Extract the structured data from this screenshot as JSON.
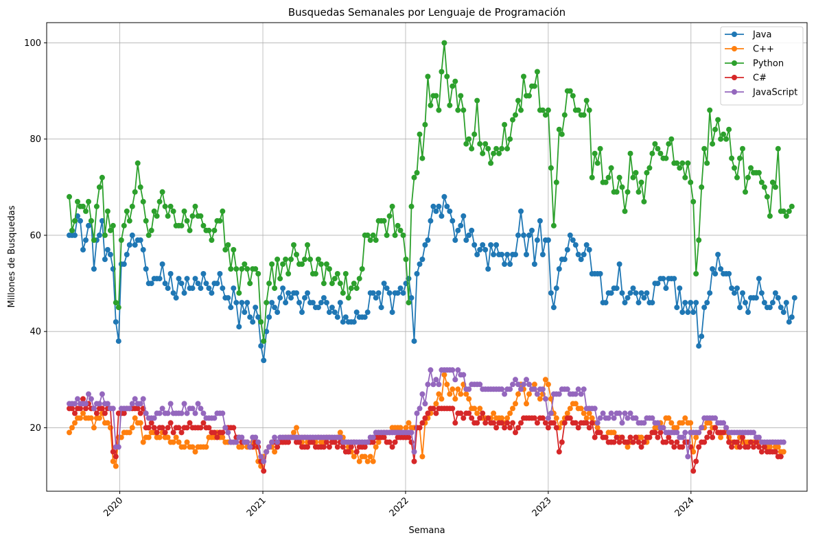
{
  "chart_data": {
    "type": "line",
    "title": "Busquedas Semanales por Lenguaje de Programación",
    "xlabel": "Semana",
    "ylabel": "Millones de Busquedas",
    "x_start": "2019-08-25",
    "x_step_days": 7,
    "xlim": [
      "2019-06-28",
      "2024-10-24"
    ],
    "ylim": [
      6.8,
      104.2
    ],
    "x_ticks": [
      "2020",
      "2021",
      "2022",
      "2023",
      "2024"
    ],
    "x_tick_dates": [
      "2020-01-01",
      "2021-01-01",
      "2022-01-01",
      "2023-01-01",
      "2024-01-01"
    ],
    "y_ticks": [
      20,
      40,
      60,
      80,
      100
    ],
    "grid": true,
    "legend_position": "top-right",
    "series": [
      {
        "name": "Java",
        "color": "#1f77b4",
        "values": [
          60,
          60,
          60,
          64,
          63,
          57,
          59,
          62,
          63,
          53,
          59,
          60,
          63,
          55,
          57,
          56,
          53,
          42,
          38,
          54,
          54,
          56,
          58,
          60,
          58,
          59,
          59,
          57,
          53,
          50,
          50,
          51,
          51,
          51,
          54,
          50,
          49,
          52,
          48,
          47,
          51,
          50,
          48,
          51,
          49,
          49,
          51,
          50,
          49,
          52,
          50,
          49,
          48,
          50,
          50,
          52,
          49,
          47,
          47,
          45,
          49,
          46,
          41,
          46,
          44,
          46,
          43,
          42,
          45,
          43,
          37,
          34,
          40,
          43,
          46,
          45,
          44,
          47,
          49,
          46,
          48,
          47,
          48,
          48,
          46,
          44,
          47,
          48,
          46,
          46,
          45,
          45,
          46,
          47,
          46,
          44,
          45,
          44,
          43,
          46,
          42,
          43,
          42,
          42,
          42,
          44,
          43,
          43,
          43,
          44,
          48,
          48,
          47,
          48,
          45,
          50,
          49,
          48,
          44,
          48,
          48,
          49,
          48,
          50,
          51,
          47,
          38,
          52,
          54,
          55,
          58,
          59,
          63,
          66,
          65,
          66,
          64,
          68,
          66,
          65,
          63,
          59,
          61,
          62,
          64,
          59,
          60,
          61,
          58,
          56,
          57,
          58,
          57,
          53,
          58,
          56,
          58,
          56,
          56,
          54,
          56,
          54,
          56,
          56,
          60,
          65,
          60,
          56,
          60,
          61,
          54,
          59,
          63,
          56,
          59,
          59,
          48,
          45,
          49,
          53,
          55,
          55,
          57,
          60,
          59,
          58,
          56,
          55,
          56,
          58,
          57,
          52,
          52,
          52,
          52,
          46,
          46,
          48,
          48,
          49,
          49,
          54,
          48,
          46,
          47,
          48,
          49,
          48,
          46,
          48,
          47,
          48,
          46,
          46,
          50,
          50,
          51,
          51,
          49,
          51,
          51,
          51,
          45,
          49,
          44,
          46,
          44,
          46,
          44,
          46,
          37,
          39,
          45,
          46,
          48,
          53,
          52,
          56,
          53,
          52,
          52,
          52,
          49,
          48,
          49,
          45,
          48,
          46,
          44,
          47,
          47,
          47,
          51,
          48,
          46,
          45,
          45,
          46,
          48,
          47,
          45,
          44,
          46,
          42,
          43,
          47
        ]
      },
      {
        "name": "C++",
        "color": "#ff7f0e",
        "values": [
          19,
          20,
          21,
          22,
          22,
          23,
          22,
          22,
          22,
          20,
          22,
          22,
          23,
          21,
          21,
          20,
          13,
          12,
          18,
          18,
          19,
          19,
          19,
          20,
          22,
          21,
          21,
          17,
          18,
          18,
          19,
          19,
          18,
          18,
          19,
          18,
          18,
          17,
          17,
          18,
          17,
          16,
          16,
          17,
          16,
          16,
          15,
          16,
          16,
          16,
          16,
          18,
          18,
          18,
          19,
          18,
          18,
          17,
          17,
          17,
          17,
          17,
          16,
          16,
          17,
          16,
          16,
          17,
          16,
          13,
          12,
          14,
          15,
          16,
          16,
          15,
          17,
          17,
          17,
          18,
          18,
          18,
          19,
          20,
          18,
          17,
          18,
          17,
          17,
          17,
          17,
          18,
          17,
          17,
          18,
          18,
          17,
          17,
          18,
          19,
          18,
          17,
          16,
          15,
          14,
          15,
          13,
          14,
          14,
          13,
          14,
          13,
          16,
          17,
          18,
          19,
          19,
          19,
          20,
          20,
          20,
          20,
          19,
          20,
          21,
          20,
          20,
          20,
          20,
          14,
          21,
          22,
          23,
          24,
          25,
          27,
          26,
          31,
          29,
          27,
          28,
          26,
          28,
          27,
          29,
          27,
          26,
          24,
          24,
          23,
          24,
          22,
          22,
          22,
          22,
          23,
          22,
          22,
          22,
          21,
          22,
          23,
          24,
          25,
          27,
          29,
          28,
          25,
          27,
          28,
          29,
          27,
          26,
          27,
          30,
          29,
          26,
          23,
          22,
          20,
          21,
          22,
          23,
          24,
          25,
          25,
          24,
          24,
          23,
          22,
          23,
          22,
          21,
          20,
          19,
          18,
          18,
          19,
          19,
          19,
          18,
          18,
          18,
          17,
          16,
          17,
          17,
          18,
          18,
          18,
          17,
          17,
          18,
          19,
          20,
          20,
          21,
          20,
          22,
          22,
          21,
          20,
          20,
          21,
          21,
          22,
          21,
          21,
          15,
          18,
          19,
          20,
          20,
          21,
          21,
          20,
          20,
          19,
          18,
          19,
          19,
          18,
          17,
          17,
          16,
          18,
          17,
          17,
          17,
          17,
          17,
          17,
          17,
          17,
          16,
          16,
          16,
          17,
          16,
          16,
          15,
          15
        ]
      },
      {
        "name": "Python",
        "color": "#2ca02c",
        "values": [
          68,
          61,
          63,
          67,
          66,
          66,
          65,
          67,
          63,
          59,
          66,
          70,
          72,
          60,
          65,
          61,
          62,
          46,
          45,
          59,
          62,
          65,
          63,
          66,
          69,
          75,
          70,
          67,
          63,
          60,
          61,
          65,
          64,
          67,
          69,
          66,
          64,
          66,
          65,
          62,
          62,
          62,
          65,
          63,
          61,
          64,
          66,
          64,
          64,
          62,
          61,
          61,
          59,
          61,
          63,
          63,
          65,
          57,
          58,
          53,
          57,
          53,
          48,
          53,
          54,
          53,
          50,
          53,
          53,
          52,
          42,
          38,
          46,
          50,
          54,
          49,
          55,
          51,
          54,
          55,
          52,
          55,
          58,
          56,
          54,
          54,
          55,
          58,
          55,
          52,
          52,
          55,
          54,
          50,
          54,
          53,
          50,
          51,
          52,
          50,
          48,
          52,
          47,
          49,
          50,
          49,
          51,
          53,
          60,
          60,
          59,
          60,
          59,
          63,
          63,
          63,
          60,
          64,
          66,
          60,
          62,
          61,
          60,
          55,
          46,
          66,
          72,
          73,
          81,
          76,
          83,
          93,
          87,
          89,
          89,
          86,
          94,
          100,
          93,
          87,
          91,
          92,
          86,
          89,
          86,
          79,
          80,
          78,
          81,
          88,
          79,
          77,
          79,
          78,
          75,
          77,
          78,
          77,
          78,
          83,
          78,
          80,
          84,
          85,
          88,
          86,
          93,
          89,
          89,
          91,
          91,
          94,
          86,
          86,
          85,
          86,
          74,
          62,
          71,
          82,
          81,
          85,
          90,
          90,
          89,
          86,
          86,
          85,
          85,
          88,
          86,
          72,
          77,
          75,
          78,
          71,
          71,
          72,
          74,
          69,
          69,
          72,
          70,
          65,
          69,
          77,
          72,
          73,
          69,
          71,
          67,
          73,
          74,
          77,
          79,
          78,
          77,
          76,
          76,
          79,
          80,
          75,
          75,
          74,
          75,
          72,
          75,
          71,
          67,
          52,
          59,
          70,
          78,
          75,
          86,
          79,
          82,
          84,
          80,
          81,
          80,
          82,
          76,
          74,
          72,
          76,
          78,
          69,
          72,
          74,
          73,
          73,
          73,
          71,
          70,
          68,
          64,
          71,
          70,
          78,
          65,
          65,
          64,
          65,
          66
        ]
      },
      {
        "name": "C#",
        "color": "#d62728",
        "values": [
          24,
          24,
          23,
          24,
          24,
          26,
          24,
          25,
          24,
          24,
          23,
          24,
          24,
          23,
          24,
          24,
          15,
          14,
          23,
          23,
          23,
          24,
          24,
          24,
          24,
          24,
          23,
          24,
          20,
          20,
          21,
          20,
          19,
          20,
          20,
          19,
          20,
          21,
          19,
          20,
          20,
          19,
          20,
          20,
          21,
          20,
          20,
          20,
          20,
          21,
          20,
          20,
          19,
          19,
          18,
          19,
          19,
          20,
          20,
          20,
          20,
          18,
          18,
          17,
          17,
          17,
          16,
          16,
          17,
          16,
          13,
          11,
          15,
          16,
          17,
          17,
          16,
          17,
          17,
          17,
          17,
          18,
          18,
          17,
          17,
          16,
          16,
          16,
          17,
          17,
          16,
          16,
          16,
          16,
          17,
          16,
          17,
          17,
          16,
          17,
          16,
          15,
          15,
          16,
          17,
          15,
          16,
          16,
          16,
          17,
          17,
          17,
          18,
          18,
          18,
          18,
          17,
          17,
          16,
          17,
          18,
          18,
          18,
          18,
          18,
          17,
          13,
          20,
          20,
          21,
          22,
          23,
          24,
          24,
          23,
          24,
          24,
          24,
          24,
          24,
          24,
          21,
          23,
          23,
          22,
          23,
          23,
          22,
          21,
          21,
          22,
          23,
          21,
          22,
          21,
          21,
          20,
          21,
          21,
          20,
          21,
          20,
          21,
          19,
          20,
          21,
          22,
          22,
          22,
          22,
          22,
          21,
          22,
          22,
          21,
          20,
          21,
          21,
          20,
          15,
          17,
          21,
          22,
          22,
          21,
          21,
          20,
          21,
          21,
          21,
          20,
          21,
          18,
          19,
          19,
          18,
          18,
          17,
          17,
          17,
          18,
          17,
          18,
          17,
          17,
          18,
          17,
          18,
          17,
          16,
          17,
          18,
          18,
          19,
          19,
          18,
          19,
          17,
          17,
          18,
          17,
          16,
          17,
          16,
          16,
          17,
          17,
          16,
          11,
          13,
          16,
          17,
          17,
          18,
          19,
          18,
          20,
          19,
          19,
          19,
          20,
          17,
          16,
          17,
          17,
          16,
          18,
          16,
          16,
          17,
          16,
          17,
          16,
          15,
          16,
          15,
          15,
          15,
          15,
          14,
          14
        ]
      },
      {
        "name": "JavaScript",
        "color": "#9467bd",
        "values": [
          25,
          25,
          25,
          26,
          25,
          25,
          25,
          27,
          26,
          24,
          25,
          25,
          27,
          25,
          25,
          24,
          24,
          16,
          16,
          24,
          24,
          24,
          24,
          25,
          26,
          25,
          25,
          26,
          23,
          22,
          22,
          22,
          23,
          23,
          24,
          23,
          23,
          25,
          23,
          23,
          23,
          23,
          25,
          23,
          24,
          24,
          23,
          25,
          24,
          23,
          22,
          22,
          22,
          22,
          23,
          23,
          23,
          20,
          19,
          17,
          17,
          17,
          18,
          18,
          17,
          17,
          16,
          18,
          18,
          17,
          14,
          13,
          15,
          16,
          17,
          18,
          17,
          18,
          18,
          18,
          18,
          18,
          18,
          18,
          18,
          18,
          18,
          18,
          18,
          18,
          18,
          18,
          18,
          18,
          18,
          18,
          18,
          18,
          18,
          18,
          17,
          17,
          17,
          17,
          17,
          17,
          17,
          17,
          17,
          17,
          18,
          18,
          19,
          19,
          19,
          19,
          19,
          19,
          19,
          19,
          19,
          19,
          19,
          19,
          19,
          19,
          15,
          23,
          24,
          27,
          25,
          29,
          32,
          29,
          30,
          29,
          32,
          32,
          32,
          32,
          32,
          30,
          32,
          31,
          31,
          28,
          28,
          29,
          29,
          29,
          29,
          28,
          28,
          28,
          28,
          28,
          28,
          28,
          28,
          27,
          28,
          28,
          29,
          30,
          29,
          28,
          29,
          30,
          29,
          28,
          28,
          27,
          28,
          28,
          26,
          22,
          23,
          27,
          27,
          27,
          28,
          28,
          28,
          27,
          27,
          27,
          28,
          27,
          28,
          24,
          24,
          24,
          24,
          21,
          22,
          23,
          22,
          22,
          23,
          22,
          23,
          23,
          21,
          23,
          22,
          23,
          22,
          22,
          21,
          21,
          21,
          22,
          22,
          22,
          21,
          21,
          20,
          20,
          19,
          19,
          19,
          19,
          19,
          18,
          18,
          19,
          14,
          19,
          19,
          19,
          19,
          20,
          22,
          22,
          22,
          22,
          22,
          21,
          21,
          21,
          20,
          19,
          19,
          19,
          19,
          19,
          19,
          19,
          19,
          19,
          19,
          18,
          18,
          17,
          17,
          17,
          17,
          17,
          17,
          17,
          17,
          17
        ]
      }
    ]
  }
}
